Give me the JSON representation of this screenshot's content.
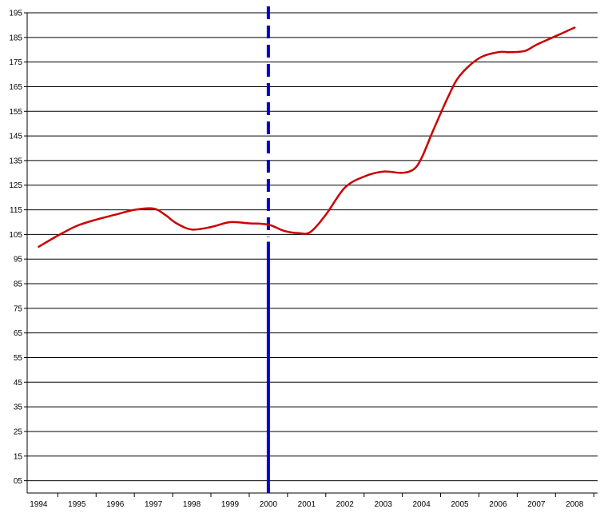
{
  "chart_data": {
    "type": "line",
    "title": "",
    "xlabel": "",
    "ylabel": "",
    "grid": true,
    "legend": "none",
    "xlim": [
      1993.7,
      2008.6
    ],
    "ylim": [
      0,
      195
    ],
    "x_ticks": [
      "1994",
      "1995",
      "1996",
      "1997",
      "1998",
      "1999",
      "2000",
      "2001",
      "2002",
      "2003",
      "2004",
      "2005",
      "2006",
      "2007",
      "2008"
    ],
    "y_ticks": [
      "05",
      "15",
      "25",
      "35",
      "45",
      "55",
      "65",
      "75",
      "85",
      "95",
      "105",
      "115",
      "125",
      "135",
      "145",
      "155",
      "165",
      "175",
      "185",
      "195"
    ],
    "series": [
      {
        "color": "#cc0000",
        "x": [
          1994.0,
          1994.5,
          1995.0,
          1995.5,
          1996.0,
          1996.5,
          1997.0,
          1997.3,
          1997.6,
          1998.0,
          1998.5,
          1999.0,
          1999.5,
          2000.0,
          2000.4,
          2000.8,
          2001.1,
          2001.5,
          2002.0,
          2002.5,
          2003.0,
          2003.5,
          2003.8,
          2004.0,
          2004.3,
          2004.7,
          2005.0,
          2005.5,
          2006.0,
          2006.3,
          2006.7,
          2007.0,
          2007.5,
          2008.0
        ],
        "values": [
          100.0,
          104.5,
          108.5,
          111.0,
          113.0,
          115.0,
          115.5,
          113.0,
          109.5,
          107.0,
          108.0,
          110.0,
          109.5,
          109.0,
          106.5,
          105.5,
          106.0,
          113.0,
          124.0,
          128.5,
          130.5,
          130.0,
          131.5,
          136.0,
          147.0,
          161.0,
          169.5,
          176.5,
          179.0,
          179.0,
          179.5,
          182.0,
          185.5,
          189.0
        ]
      }
    ],
    "annotations": [
      {
        "type": "vertical_line",
        "x": 2000,
        "color": "#0000cc",
        "style_above": "dashed",
        "style_below": "solid",
        "split_at": 104
      }
    ]
  }
}
